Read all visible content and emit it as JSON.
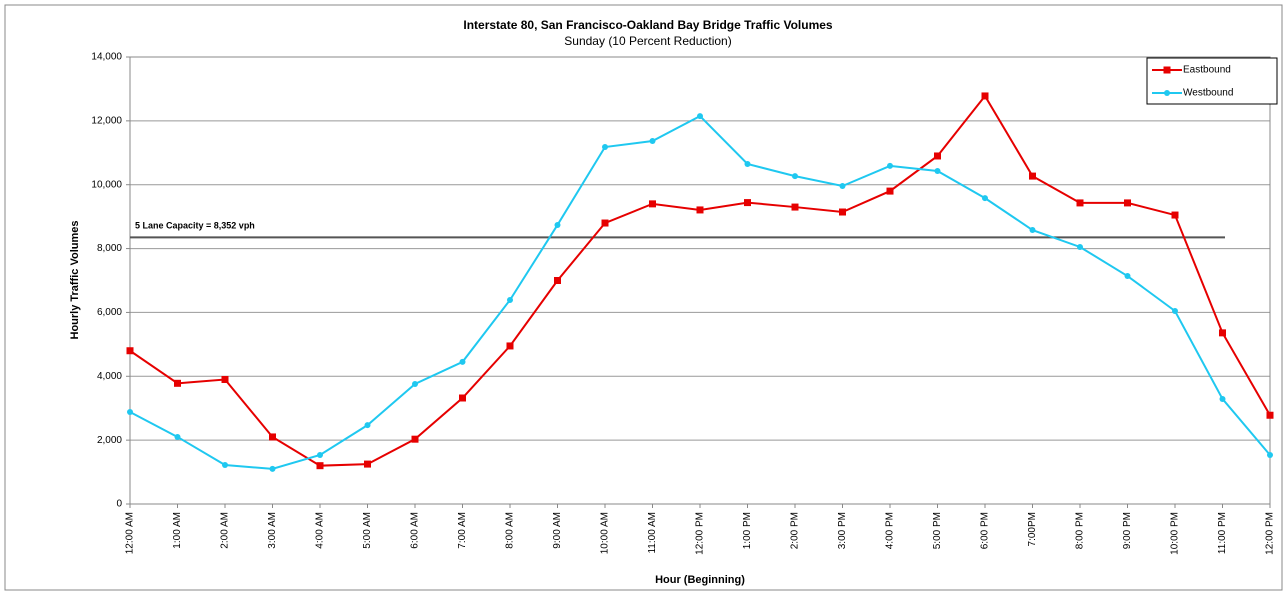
{
  "chart_data": {
    "type": "line",
    "title": "Interstate 80, San Francisco-Oakland Bay Bridge Traffic Volumes",
    "subtitle": "Sunday (10 Percent Reduction)",
    "y_label": "Hourly Traffic Volumes",
    "x_label": "Hour (Beginning)",
    "categories": [
      "12:00 AM",
      "1:00 AM",
      "2:00 AM",
      "3:00 AM",
      "4:00 AM",
      "5:00 AM",
      "6:00 AM",
      "7:00 AM",
      "8:00 AM",
      "9:00 AM",
      "10:00 AM",
      "11:00 AM",
      "12:00 PM",
      "1:00 PM",
      "2:00 PM",
      "3:00 PM",
      "4:00 PM",
      "5:00 PM",
      "6:00 PM",
      "7:00PM",
      "8:00 PM",
      "9:00 PM",
      "10:00 PM",
      "11:00 PM",
      "12:00 PM"
    ],
    "series": [
      {
        "name": "Eastbound",
        "color": "#e60000",
        "marker": "square",
        "values": [
          4800,
          3780,
          3900,
          2100,
          1200,
          1250,
          2030,
          3320,
          4950,
          7000,
          8800,
          9400,
          9210,
          9440,
          9300,
          9145,
          9800,
          10900,
          12780,
          10270,
          9430,
          9430,
          9050,
          5360,
          2780
        ]
      },
      {
        "name": "Westbound",
        "color": "#1fc8f0",
        "marker": "circle",
        "values": [
          2880,
          2100,
          1220,
          1100,
          1535,
          2470,
          3760,
          4450,
          6390,
          8740,
          11180,
          11370,
          12150,
          10650,
          10270,
          9960,
          10590,
          10430,
          9580,
          8580,
          8050,
          7140,
          6045,
          3290,
          1535
        ]
      }
    ],
    "capacity_line": {
      "label": "5 Lane Capacity = 8,352 vph",
      "value": 8352
    },
    "ylim": [
      0,
      14000
    ],
    "yticks": [
      0,
      {
        "value": 2000,
        "label": "2,000"
      },
      {
        "value": 4000,
        "label": "4,000"
      },
      {
        "value": 6000,
        "label": "6,000"
      },
      {
        "value": 8000,
        "label": "8,000"
      },
      {
        "value": 10000,
        "label": "10,000"
      },
      {
        "value": 12000,
        "label": "12,000"
      },
      {
        "value": 14000,
        "label": "14,000"
      }
    ],
    "grid": true,
    "legend": "top-right"
  }
}
